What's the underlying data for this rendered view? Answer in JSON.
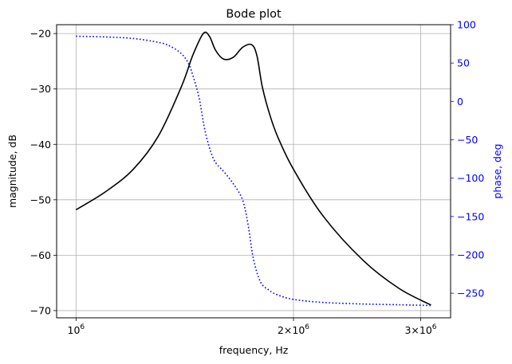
{
  "chart_data": {
    "type": "line",
    "title": "Bode plot",
    "xlabel": "frequency, Hz",
    "ylabel_left": "magnitude, dB",
    "ylabel_right": "phase, deg",
    "x_scale": "log",
    "xlim": [
      940000,
      3300000
    ],
    "ylim_left": [
      -71.3,
      -18.4
    ],
    "ylim_right": [
      -282,
      100
    ],
    "grid": true,
    "x_ticks": [
      {
        "value": 1000000,
        "label": "10^6"
      },
      {
        "value": 2000000,
        "label": "2×10^6"
      },
      {
        "value": 3000000,
        "label": "3×10^6"
      }
    ],
    "y_ticks_left": [
      {
        "value": -20,
        "label": "−20"
      },
      {
        "value": -30,
        "label": "−30"
      },
      {
        "value": -40,
        "label": "−40"
      },
      {
        "value": -50,
        "label": "−50"
      },
      {
        "value": -60,
        "label": "−60"
      },
      {
        "value": -70,
        "label": "−70"
      }
    ],
    "y_ticks_right": [
      {
        "value": 100,
        "label": "100"
      },
      {
        "value": 50,
        "label": "50"
      },
      {
        "value": 0,
        "label": "0"
      },
      {
        "value": -50,
        "label": "−50"
      },
      {
        "value": -100,
        "label": "−100"
      },
      {
        "value": -150,
        "label": "−150"
      },
      {
        "value": -200,
        "label": "−200"
      },
      {
        "value": -250,
        "label": "−250"
      }
    ],
    "series": [
      {
        "name": "magnitude",
        "axis": "left",
        "color": "#000000",
        "style": "solid",
        "x": [
          1000000,
          1100000,
          1200000,
          1300000,
          1400000,
          1450000,
          1500000,
          1530000,
          1560000,
          1600000,
          1650000,
          1700000,
          1750000,
          1780000,
          1810000,
          1850000,
          1900000,
          2000000,
          2200000,
          2500000,
          2800000,
          3100000
        ],
        "y": [
          -51.8,
          -48.5,
          -44.5,
          -38.5,
          -29.5,
          -24.0,
          -20.0,
          -20.5,
          -23.0,
          -24.6,
          -24.3,
          -22.5,
          -22.0,
          -24.0,
          -29.5,
          -34.2,
          -38.5,
          -44.5,
          -53.0,
          -61.0,
          -66.0,
          -69.0
        ]
      },
      {
        "name": "phase",
        "axis": "right",
        "color": "#0000ff",
        "style": "dotted",
        "x": [
          1000000,
          1100000,
          1200000,
          1300000,
          1350000,
          1400000,
          1430000,
          1450000,
          1480000,
          1510000,
          1550000,
          1600000,
          1650000,
          1700000,
          1730000,
          1760000,
          1800000,
          1850000,
          1900000,
          2000000,
          2200000,
          2500000,
          2800000,
          3100000
        ],
        "y": [
          85,
          84,
          82,
          77,
          72,
          62,
          50,
          35,
          5,
          -40,
          -75,
          -91,
          -107,
          -128,
          -160,
          -205,
          -235,
          -246,
          -252,
          -258,
          -262,
          -264,
          -265,
          -266
        ]
      }
    ]
  }
}
